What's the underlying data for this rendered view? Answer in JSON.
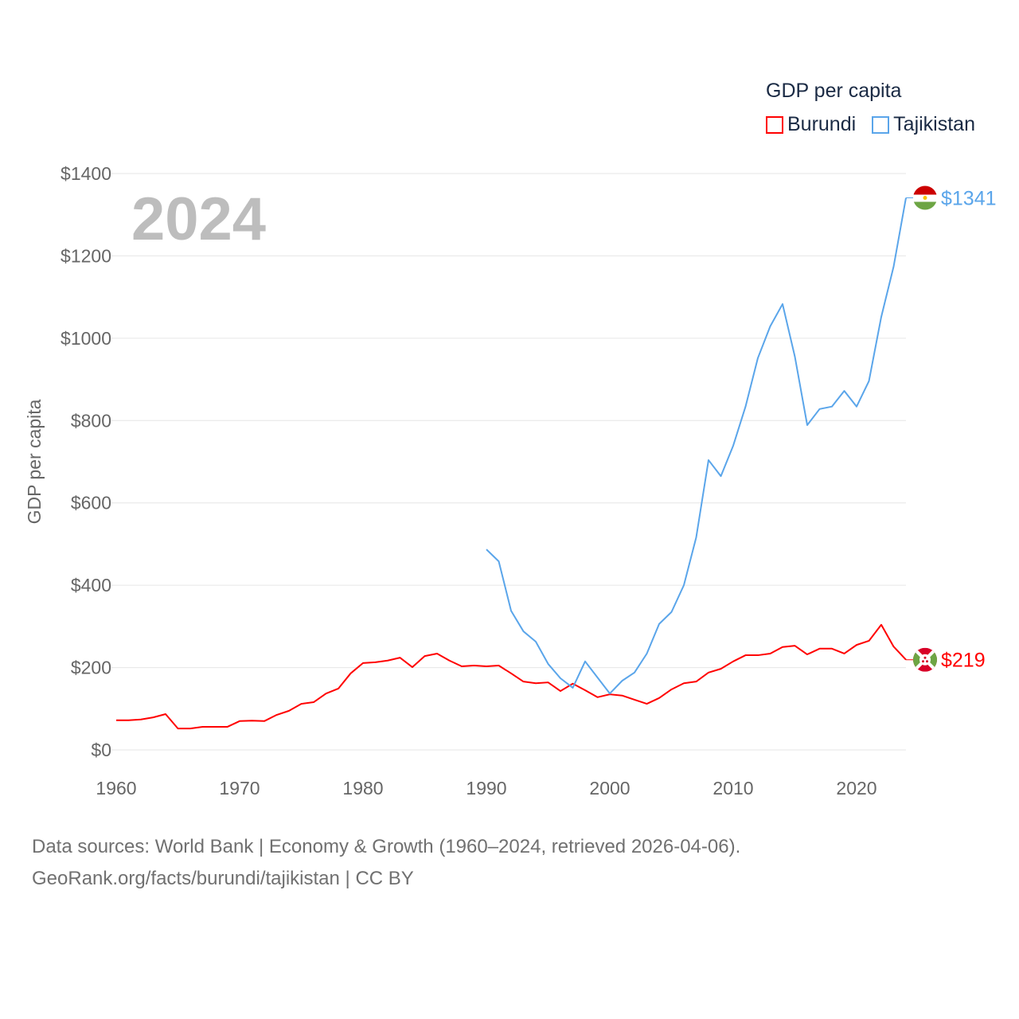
{
  "chart_data": {
    "type": "line",
    "title": "GDP per capita",
    "ylabel": "GDP per capita",
    "xlabel": "",
    "xlim": [
      1960,
      2024
    ],
    "ylim": [
      0,
      1400
    ],
    "x_ticks": [
      "1960",
      "1970",
      "1980",
      "1990",
      "2000",
      "2010",
      "2020"
    ],
    "y_ticks": [
      "$0",
      "$200",
      "$400",
      "$600",
      "$800",
      "$1000",
      "$1200",
      "$1400"
    ],
    "grid": true,
    "legend_position": "top-right",
    "year_label": "2024",
    "series": [
      {
        "name": "Burundi",
        "color": "#ff0000",
        "end_label": "$219",
        "start": 1960,
        "values": [
          72,
          72,
          74,
          79,
          87,
          52,
          52,
          56,
          56,
          56,
          70,
          71,
          70,
          85,
          95,
          112,
          116,
          137,
          149,
          186,
          211,
          213,
          217,
          224,
          201,
          228,
          234,
          217,
          203,
          205,
          203,
          205,
          186,
          166,
          162,
          164,
          143,
          161,
          145,
          128,
          135,
          132,
          122,
          112,
          126,
          147,
          162,
          166,
          188,
          197,
          215,
          230,
          230,
          234,
          250,
          253,
          232,
          246,
          246,
          234,
          255,
          265,
          304,
          251,
          219
        ]
      },
      {
        "name": "Tajikistan",
        "color": "#5aa5ea",
        "end_label": "$1341",
        "start": 1990,
        "values": [
          487,
          458,
          338,
          288,
          263,
          209,
          174,
          151,
          215,
          176,
          137,
          168,
          188,
          234,
          306,
          335,
          400,
          516,
          704,
          665,
          739,
          834,
          952,
          1029,
          1083,
          955,
          789,
          828,
          834,
          872,
          834,
          896,
          1052,
          1174,
          1341
        ]
      }
    ]
  },
  "footer": {
    "line1": "Data sources: World Bank | Economy & Growth (1960–2024, retrieved 2026-04-06).",
    "line2": "GeoRank.org/facts/burundi/tajikistan | CC BY"
  }
}
